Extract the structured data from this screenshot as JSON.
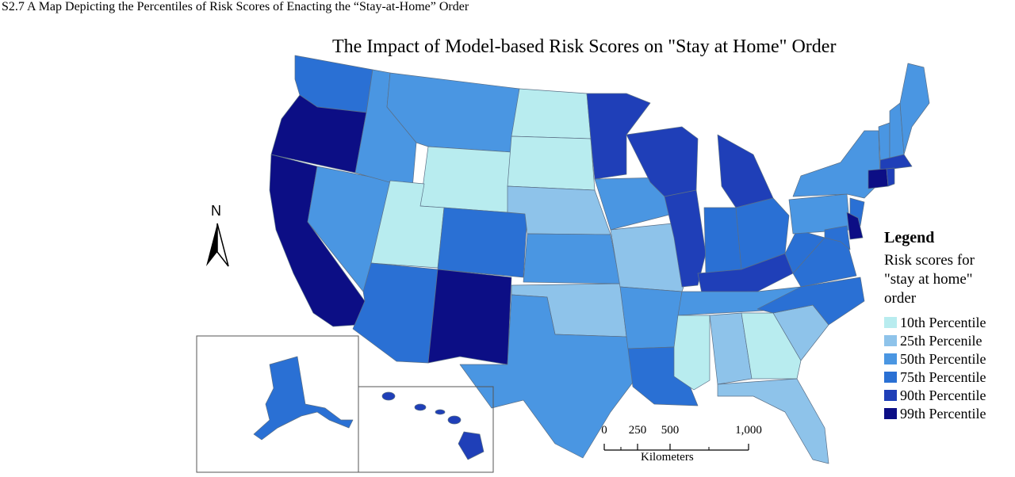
{
  "caption": "S2.7 A Map Depicting the Percentiles of Risk Scores of Enacting the “Stay-at-Home” Order",
  "map": {
    "title": "The Impact of Model-based Risk Scores on \"Stay at Home\" Order",
    "north_label": "N",
    "legend": {
      "title": "Legend",
      "subtitle": "Risk scores for \"stay at home\" order",
      "items": [
        {
          "label": "10th Percentile",
          "color": "#b8ecef"
        },
        {
          "label": "25th Percenile",
          "color": "#8ec3ea"
        },
        {
          "label": "50th Percentile",
          "color": "#4a96e2"
        },
        {
          "label": "75th Percentile",
          "color": "#2a70d4"
        },
        {
          "label": "90th Percentile",
          "color": "#1f3fb8"
        },
        {
          "label": "99th Percentile",
          "color": "#0c0e85"
        }
      ]
    },
    "scale": {
      "ticks": [
        "0",
        "250",
        "500",
        "1,000"
      ],
      "units": "Kilometers"
    }
  }
}
